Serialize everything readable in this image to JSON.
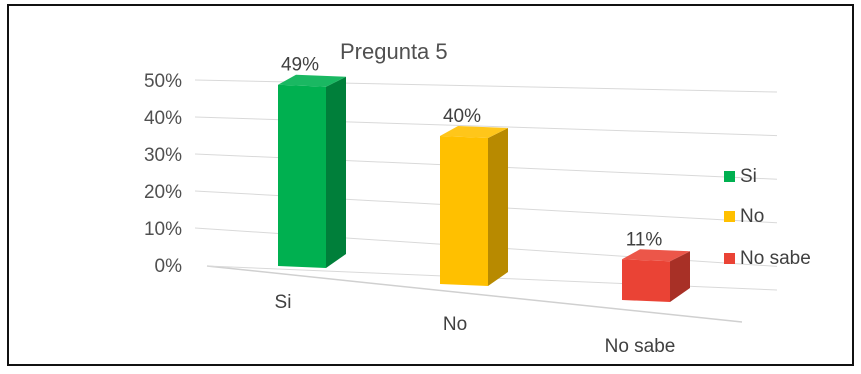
{
  "chart_data": {
    "type": "bar",
    "title": "Pregunta 5",
    "categories": [
      "Si",
      "No",
      "No sabe"
    ],
    "values": [
      49,
      40,
      11
    ],
    "value_labels": [
      "49%",
      "40%",
      "11%"
    ],
    "ytick_labels": [
      "0%",
      "10%",
      "20%",
      "30%",
      "40%",
      "50%"
    ],
    "ylim": [
      0,
      50
    ],
    "grid": true,
    "legend_position": "right",
    "legend": [
      "Si",
      "No",
      "No sabe"
    ],
    "colors": [
      "#00B050",
      "#FFC000",
      "#EA4335"
    ]
  }
}
